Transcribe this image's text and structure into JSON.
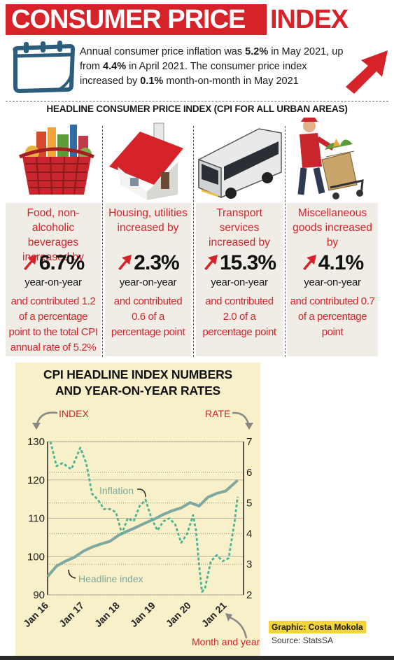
{
  "header": {
    "title_part1": "CONSUMER PRICE",
    "title_part2": "INDEX",
    "intro_parts": [
      "Annual consumer price inflation was ",
      "5.2%",
      " in May 2021, up from ",
      "4.4%",
      " in April 2021. The consumer price index increased by ",
      "0.1%",
      " month-on-month in May 2021"
    ],
    "icons": [
      "calendar-icon",
      "up-arrow-icon"
    ]
  },
  "subheading": "HEADLINE CONSUMER PRICE INDEX (CPI FOR ALL URBAN AREAS)",
  "categories": [
    {
      "title": "Food, non-alcoholic beverages increased by",
      "pct": "6.7%",
      "yoy": "year-on-year",
      "contrib": "and contributed 1.2 of a percentage point to the total CPI annual rate of 5.2%",
      "icon": "grocery-basket-icon"
    },
    {
      "title": "Housing, utilities increased by",
      "pct": "2.3%",
      "yoy": "year-on-year",
      "contrib": "and contributed 0.6 of a percentage point",
      "icon": "house-icon"
    },
    {
      "title": "Transport services increased by",
      "pct": "15.3%",
      "yoy": "year-on-year",
      "contrib": "and contributed 2.0 of a percentage point",
      "icon": "bus-icon"
    },
    {
      "title": "Miscellaneous goods increased by",
      "pct": "4.1%",
      "yoy": "year-on-year",
      "contrib": "and contributed 0.7 of a percentage point",
      "icon": "delivery-trolley-icon"
    }
  ],
  "chart": {
    "title_line1": "CPI HEADLINE INDEX NUMBERS",
    "title_line2": "AND YEAR-ON-YEAR RATES",
    "left_axis_label": "INDEX",
    "right_axis_label": "RATE",
    "xlabel": "Month and year",
    "series_labels": {
      "inflation": "Inflation",
      "headline": "Headline index"
    },
    "colors": {
      "panel": "#f7f0c9",
      "headline": "#7fa8a0",
      "inflation": "#4bb393",
      "accent": "#d6232a"
    }
  },
  "chart_data": {
    "type": "line",
    "x_ticks": [
      "Jan 16",
      "Jan 17",
      "Jan 18",
      "Jan 19",
      "Jan 20",
      "Jan 21"
    ],
    "left_axis": {
      "label": "INDEX",
      "ticks": [
        90,
        100,
        110,
        120,
        130
      ],
      "range": [
        90,
        130
      ]
    },
    "right_axis": {
      "label": "RATE",
      "ticks": [
        2,
        3,
        4,
        5,
        6,
        7
      ],
      "range": [
        2,
        7
      ]
    },
    "series": [
      {
        "name": "Headline index",
        "axis": "left",
        "style": "solid",
        "x": [
          "2016-01",
          "2016-04",
          "2016-07",
          "2016-10",
          "2017-01",
          "2017-04",
          "2017-07",
          "2017-10",
          "2018-01",
          "2018-04",
          "2018-07",
          "2018-10",
          "2019-01",
          "2019-04",
          "2019-07",
          "2019-10",
          "2020-01",
          "2020-04",
          "2020-07",
          "2020-10",
          "2021-01",
          "2021-05"
        ],
        "values": [
          94.8,
          97.5,
          98.8,
          99.8,
          101.4,
          102.5,
          103.3,
          104.0,
          105.6,
          106.7,
          107.7,
          108.8,
          109.8,
          111.0,
          112.0,
          112.7,
          114.1,
          113.2,
          115.5,
          116.5,
          117.1,
          119.9
        ]
      },
      {
        "name": "Inflation",
        "axis": "right",
        "style": "dashed",
        "x": [
          "2016-02",
          "2016-04",
          "2016-06",
          "2016-09",
          "2016-12",
          "2017-02",
          "2017-04",
          "2017-06",
          "2017-08",
          "2017-10",
          "2017-12",
          "2018-02",
          "2018-04",
          "2018-06",
          "2018-08",
          "2018-10",
          "2018-12",
          "2019-02",
          "2019-04",
          "2019-06",
          "2019-08",
          "2019-10",
          "2019-12",
          "2020-02",
          "2020-03",
          "2020-04",
          "2020-05",
          "2020-06",
          "2020-08",
          "2020-10",
          "2020-12",
          "2021-02",
          "2021-04",
          "2021-05"
        ],
        "values": [
          7.0,
          6.2,
          6.3,
          6.1,
          6.8,
          6.3,
          5.3,
          5.1,
          4.8,
          4.8,
          4.7,
          4.0,
          4.5,
          4.4,
          4.9,
          5.1,
          4.5,
          4.1,
          4.4,
          4.5,
          4.3,
          3.7,
          4.0,
          4.6,
          4.1,
          3.0,
          2.1,
          2.2,
          3.1,
          3.3,
          3.1,
          3.2,
          4.4,
          5.2
        ]
      }
    ],
    "annotations": [
      "Inflation",
      "Headline index"
    ]
  },
  "credits": {
    "graphic": "Graphic: Costa Mokola",
    "source": "Source: StatsSA"
  }
}
